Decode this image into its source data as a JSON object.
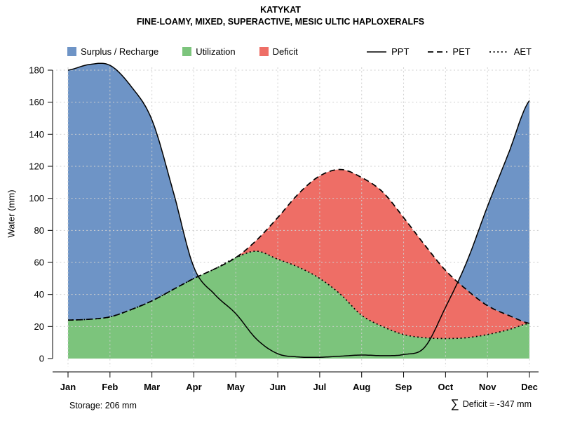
{
  "footer": {
    "storage": "Storage: 206 mm",
    "sigma": "∑",
    "deficit": "Deficit = -347 mm"
  },
  "chart_data": {
    "type": "area",
    "title": "KATYKAT",
    "subtitle": "FINE-LOAMY, MIXED, SUPERACTIVE, MESIC ULTIC HAPLOXERALFS",
    "ylabel": "Water (mm)",
    "ylim": [
      0,
      180
    ],
    "ytick_max": 180,
    "ytick_step": 20,
    "legend_position": "top",
    "grid": true,
    "months": [
      "Jan",
      "Feb",
      "Mar",
      "Apr",
      "May",
      "Jun",
      "Jul",
      "Aug",
      "Sep",
      "Oct",
      "Nov",
      "Dec"
    ],
    "x_months": [
      0,
      0.5,
      1,
      1.5,
      2,
      2.5,
      3,
      3.5,
      4,
      4.5,
      5,
      5.5,
      6,
      6.5,
      7,
      7.5,
      8,
      8.5,
      9,
      9.5,
      10,
      10.5,
      11
    ],
    "series": [
      {
        "name": "PPT",
        "style": "solid",
        "values": [
          180,
          183.5,
          183,
          170,
          149,
          105,
          57,
          40,
          28,
          12,
          3,
          1,
          0.8,
          1.5,
          2.2,
          1.8,
          2.5,
          7,
          32,
          60,
          95,
          128,
          161
        ]
      },
      {
        "name": "PET",
        "style": "dashed",
        "values": [
          24,
          24.5,
          26,
          30.5,
          36,
          43,
          50,
          56,
          63,
          74,
          88,
          103,
          114,
          118,
          113,
          104,
          88,
          71,
          55,
          43,
          33,
          27,
          22
        ]
      },
      {
        "name": "AET",
        "style": "dotted",
        "values": [
          24,
          24.5,
          26,
          30.5,
          36,
          43,
          50,
          56,
          63,
          67,
          62,
          57,
          50,
          40,
          27,
          20,
          15,
          13,
          12.5,
          13,
          15,
          18,
          22
        ]
      }
    ],
    "regions": [
      {
        "label": "Surplus / Recharge",
        "color": "#6e94c6"
      },
      {
        "label": "Utilization",
        "color": "#7cc47c"
      },
      {
        "label": "Deficit",
        "color": "#ee6e66"
      }
    ],
    "storage_mm": 206,
    "total_deficit_mm": -347
  }
}
